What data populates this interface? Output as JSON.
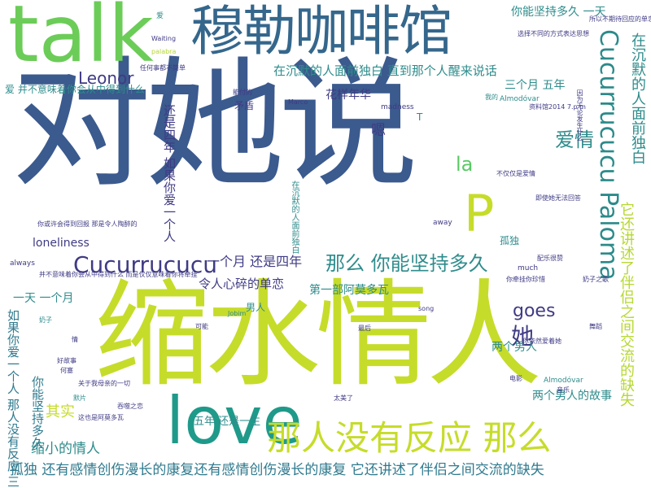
{
  "words": [
    {
      "text": "对她说",
      "color": "#3b5a8e"
    },
    {
      "text": "缩水情人",
      "color": "#c6dc2a"
    },
    {
      "text": "talk",
      "color": "#6ccc58"
    },
    {
      "text": "穆勒咖啡馆",
      "color": "#35678c"
    },
    {
      "text": "love",
      "color": "#1f9a8a"
    },
    {
      "text": "P",
      "color": "#c6dc2a"
    },
    {
      "text": "那人没有反应 那么",
      "color": "#c6dc2a"
    },
    {
      "text": "Cucurrucucu Paloma",
      "color": "#2c8a8a"
    },
    {
      "text": "它还讲述了伴侣之间交流的缺失",
      "color": "#b6d833"
    },
    {
      "text": "在沉默的人面前独白",
      "color": "#2f8c8c"
    },
    {
      "text": "Cucurrucucu",
      "color": "#3f3b84"
    },
    {
      "text": "那么 你能坚持多久",
      "color": "#2f8c8c"
    },
    {
      "text": "Leonor",
      "color": "#3f3b84"
    },
    {
      "text": "爱情",
      "color": "#2f8c8c"
    },
    {
      "text": "goes",
      "color": "#3f3b84"
    },
    {
      "text": "她",
      "color": "#3f3b84"
    },
    {
      "text": "la",
      "color": "#5ac864"
    },
    {
      "text": "孤独 还有感情创伤漫长的康复还有感情创伤漫长的康复 它还讲述了伴侣之间交流的缺失",
      "color": "#2f7a8e"
    },
    {
      "text": "缩小的情人",
      "color": "#2f8c8c"
    },
    {
      "text": "其实",
      "color": "#c6dc2a"
    },
    {
      "text": "令人心碎的单恋",
      "color": "#3f3b84"
    },
    {
      "text": "一个月 还是四年",
      "color": "#3f3b84"
    },
    {
      "text": "第一部阿莫多瓦",
      "color": "#2f8c8c"
    },
    {
      "text": "在沉默的人面前独白 直到那个人醒来说话",
      "color": "#2f8c8c"
    },
    {
      "text": "三个月 五年",
      "color": "#2f8c8c"
    },
    {
      "text": "你能坚持多久 一天",
      "color": "#2f8c8c"
    },
    {
      "text": "花样年华",
      "color": "#3f3b84"
    },
    {
      "text": "还是四年 如果你爱一个人",
      "color": "#3f3b84"
    },
    {
      "text": "如果你爱一个人 那人没有反应 三个月",
      "color": "#2f7a8e"
    },
    {
      "text": "你能坚持多久",
      "color": "#2f7a8e"
    },
    {
      "text": "一天 一个月",
      "color": "#2f8c8c"
    },
    {
      "text": "loneliness",
      "color": "#3f3b84"
    },
    {
      "text": "两个男人的故事",
      "color": "#2f8c8c"
    },
    {
      "text": "两个男人",
      "color": "#2f8c8c"
    },
    {
      "text": "五年 还是一生",
      "color": "#2f8c8c"
    },
    {
      "text": "爱 并不意味着你会从中得到什么",
      "color": "#2f8c8c"
    },
    {
      "text": "嗯",
      "color": "#3f3b84"
    },
    {
      "text": "孤独",
      "color": "#2f8c8c"
    },
    {
      "text": "男人",
      "color": "#2f8c8c"
    },
    {
      "text": "矛盾",
      "color": "#3f3b84"
    },
    {
      "text": "在沉默的人面前独白",
      "color": "#2f8c8c"
    },
    {
      "text": "T",
      "color": "#2f8c8c"
    },
    {
      "text": "madness",
      "color": "#3f3b84"
    },
    {
      "text": "away",
      "color": "#3f3b84"
    },
    {
      "text": "much",
      "color": "#3f3b84"
    },
    {
      "text": "always",
      "color": "#3f3b84"
    },
    {
      "text": "song",
      "color": "#3f3b84"
    },
    {
      "text": "Marco",
      "color": "#3f3b84"
    },
    {
      "text": "Waiting",
      "color": "#3f3b84"
    },
    {
      "text": "palabra",
      "color": "#b6d833"
    },
    {
      "text": "Almodóvar",
      "color": "#2f8c8c"
    },
    {
      "text": "Almodóvar",
      "color": "#2f8c8c"
    },
    {
      "text": "爱",
      "color": "#2f8c8c"
    },
    {
      "text": "任何事都不简单",
      "color": "#3f3b84"
    },
    {
      "text": "能付的",
      "color": "#3f3b84"
    },
    {
      "text": "配乐很赞",
      "color": "#3f3b84"
    },
    {
      "text": "奶子之歌",
      "color": "#3f3b84"
    },
    {
      "text": "我的",
      "color": "#2f8c8c"
    },
    {
      "text": "最后",
      "color": "#3f3b84"
    },
    {
      "text": "太美了",
      "color": "#3f3b84"
    },
    {
      "text": "音乐",
      "color": "#3f3b84"
    },
    {
      "text": "奶子",
      "color": "#2f8c8c"
    },
    {
      "text": "舞蹈",
      "color": "#3f3b84"
    },
    {
      "text": "好故事",
      "color": "#3f3b84"
    },
    {
      "text": "何塞",
      "color": "#3f3b84"
    },
    {
      "text": "电影",
      "color": "#3f3b84"
    },
    {
      "text": "情",
      "color": "#3f3b84"
    },
    {
      "text": "默片",
      "color": "#2f8c8c"
    },
    {
      "text": "吞噬之恋",
      "color": "#3f3b84"
    },
    {
      "text": "关于我母亲的一切",
      "color": "#3f3b84"
    },
    {
      "text": "Jobim",
      "color": "#2f8c8c"
    },
    {
      "text": "你或许会得到回报 那是令人陶醉的",
      "color": "#3f3b84"
    },
    {
      "text": "并不意味着你会从中得到什么 而是仅仅意味着你将牵挂",
      "color": "#3f3b84"
    },
    {
      "text": "你牵挂你珍惜",
      "color": "#3f3b84"
    },
    {
      "text": "这也是阿莫多瓦",
      "color": "#3f3b84"
    },
    {
      "text": "可能",
      "color": "#3f3b84"
    },
    {
      "text": "选择不同的方式表达思想",
      "color": "#3f3b84"
    },
    {
      "text": "不仅仅是爱情",
      "color": "#3f3b84"
    },
    {
      "text": "因为无论发生什么",
      "color": "#3f3b84"
    },
    {
      "text": "资料馆2014 7.p m",
      "color": "#3f3b84"
    },
    {
      "text": "所以不期待回应的单恋",
      "color": "#3f3b84"
    },
    {
      "text": "即使她无法回答",
      "color": "#3f3b84"
    },
    {
      "text": "你依然爱着她",
      "color": "#3f3b84"
    }
  ]
}
